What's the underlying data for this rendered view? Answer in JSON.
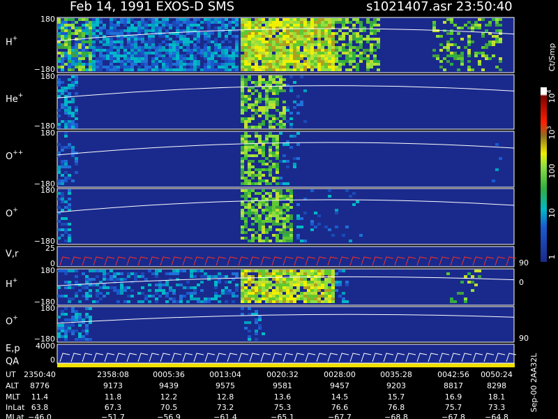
{
  "header": {
    "left": "Feb 14, 1991   EXOS-D SMS",
    "right": "s1021407.asr  23:50:40"
  },
  "panels": [
    {
      "label": "H",
      "sup": "+",
      "ticks": [
        "180",
        "−180"
      ]
    },
    {
      "label": "He",
      "sup": "+",
      "ticks": [
        "180",
        "−180"
      ]
    },
    {
      "label": "O",
      "sup": "++",
      "ticks": [
        "180",
        "−180"
      ]
    },
    {
      "label": "O",
      "sup": "+",
      "ticks": [
        "180",
        "−180"
      ]
    },
    {
      "label": "V,r",
      "ticks": [
        "25",
        "0"
      ],
      "right_ticks": [
        "90",
        "0"
      ]
    },
    {
      "label": "H",
      "sup": "+",
      "ticks": [
        "180",
        "−180"
      ]
    },
    {
      "label": "O",
      "sup": "+",
      "ticks": [
        "180",
        "−180"
      ],
      "right_ticks": [
        "90"
      ]
    },
    {
      "label": "E,p",
      "label2": "QA",
      "ticks": [
        "4000",
        "0"
      ]
    }
  ],
  "colorbar": {
    "title": "Ct/Smp",
    "labels": [
      {
        "base": "10",
        "exp": "4"
      },
      {
        "base": "10",
        "exp": "3"
      },
      {
        "base": "100"
      },
      {
        "base": "10"
      },
      {
        "base": "1"
      }
    ]
  },
  "note": "Sep-00  2AA32L",
  "table": {
    "rows": [
      {
        "label": "UT",
        "values": [
          "2350:40",
          "2358:08",
          "0005:36",
          "0013:04",
          "0020:32",
          "0028:00",
          "0035:28",
          "0042:56",
          "0050:24"
        ]
      },
      {
        "label": "ALT",
        "values": [
          "8776",
          "9173",
          "9439",
          "9575",
          "9581",
          "9457",
          "9203",
          "8817",
          "8298"
        ]
      },
      {
        "label": "MLT",
        "values": [
          "11.4",
          "11.8",
          "12.2",
          "12.8",
          "13.6",
          "14.5",
          "15.7",
          "16.9",
          "18.1"
        ]
      },
      {
        "label": "InLat",
        "values": [
          "63.8",
          "67.3",
          "70.5",
          "73.2",
          "75.3",
          "76.6",
          "76.8",
          "75.7",
          "73.3"
        ]
      },
      {
        "label": "MLat",
        "values": [
          "−46.0",
          "−51.7",
          "−56.9",
          "−61.4",
          "−65.1",
          "−67.7",
          "−68.8",
          "−67.8",
          "−64.8"
        ]
      }
    ]
  }
}
